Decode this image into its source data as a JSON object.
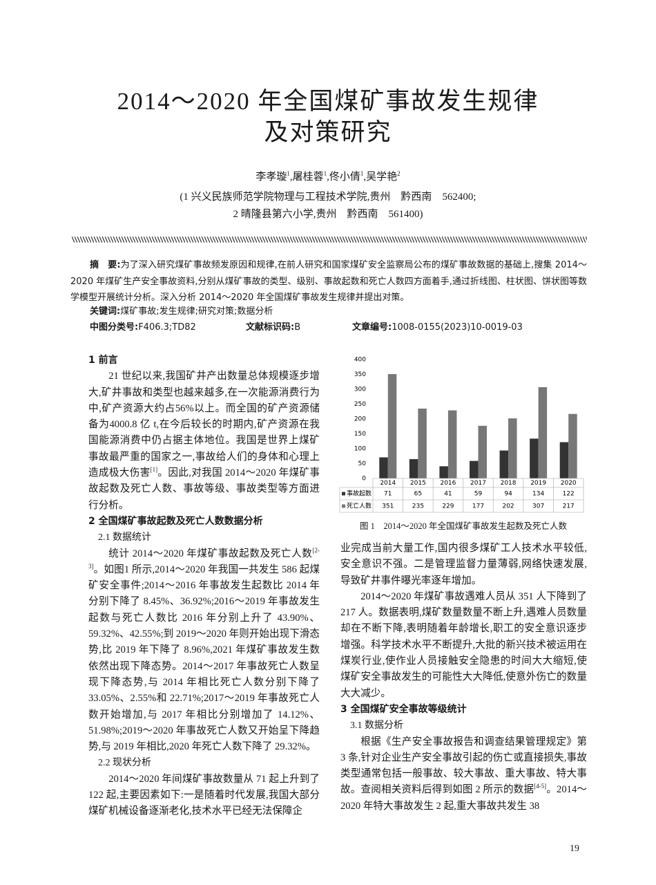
{
  "header": {
    "title_lines": [
      "2014～2020 年全国煤矿事故发生规律",
      "及对策研究"
    ],
    "authors": [
      "李孝璇",
      {
        "sup": "1"
      },
      ",屠桂蓉",
      {
        "sup": "1"
      },
      ",佟小倩",
      {
        "sup": "1"
      },
      ",吴学艳",
      {
        "sup": "2"
      }
    ],
    "affiliations": [
      "(1 兴义民族师范学院物理与工程技术学院,贵州　黔西南　562400;",
      "2 晴隆县第六小学,贵州　黔西南　561400)"
    ]
  },
  "abstract": {
    "label": "摘　要:",
    "text": "为了深入研究煤矿事故频发原因和规律,在前人研究和国家煤矿安全监察局公布的煤矿事故数据的基础上,搜集 2014～2020 年煤矿生产安全事故资料,分别从煤矿事故的类型、级别、事故起数和死亡人数四方面着手,通过折线图、柱状图、饼状图等数学模型开展统计分析。深入分析 2014～2020 年全国煤矿事故发生规律并提出对策。"
  },
  "keywords": {
    "label": "关键词:",
    "text": "煤矿事故;发生规律;研究对策;数据分析"
  },
  "classification": [
    {
      "label": "中图分类号:",
      "text": "F406.3;TD82"
    },
    {
      "label": "文献标识码:",
      "text": "B"
    },
    {
      "label": "文章编号:",
      "text": "1008-0155(2023)10-0019-03"
    }
  ],
  "left_column": [
    {
      "heading": [
        "1 前言"
      ]
    },
    {
      "paragraph": [
        "21 世纪以来,我国矿井产出数量总体规模逐步增大,矿井事故和类型也越来越多,在一次能源消费行为中,矿产资源大约占56%以上。而全国的矿产资源储备为4000.8 亿 t,在今后较长的时期内,矿产资源在我国能源消费中仍占据主体地位。我国是世界上煤矿事故最严重的国家之一,事故给人们的身体和心理上造成极大伤害",
        {
          "sup": "[1]"
        },
        "。因此,对我国 2014～2020 年煤矿事故起数及死亡人数、事故等级、事故类型等方面进行分析。"
      ]
    },
    {
      "heading": [
        "2 全国煤矿事故起数及死亡人数数据分析"
      ]
    },
    {
      "subheading": [
        "2.1 数据统计"
      ]
    },
    {
      "paragraph": [
        "统计 2014～2020 年煤矿事故起数及死亡人数",
        {
          "sup": "[2-3]"
        },
        "。如图1 所示,2014～2020 年我国一共发生 586 起煤矿安全事件;2014～2016 年事故发生起数比 2014 年分别下降了 8.45%、36.92%;2016～2019 年事故发生起数与死亡人数比 2016 年分别上升了 43.90%、59.32%、42.55%;到 2019～2020 年则开始出现下滑态势,比 2019 年下降了 8.96%,2021 年煤矿事故发生数依然出现下降态势。2014～2017 年事故死亡人数呈现下降态势,与 2014 年相比死亡人数分别下降了 33.05%、2.55%和 22.71%;2017～2019 年事故死亡人数开始增加,与 2017 年相比分别增加了 14.12%、51.98%;2019～2020 年事故死亡人数又开始呈下降趋势,与 2019 年相比,2020 年死亡人数下降了 29.32%。"
      ]
    },
    {
      "subheading": [
        "2.2 现状分析"
      ]
    },
    {
      "paragraph": [
        "2014～2020 年间煤矿事故数量从 71 起上升到了 122 起,主要因素如下:一是随着时代发展,我国大部分煤矿机械设备逐渐老化,技术水平已经无法保障企"
      ]
    }
  ],
  "right_column": [
    {
      "continuation": [
        "业完成当前大量工作,国内很多煤矿工人技术水平较低,安全意识不强。二是管理监督力量薄弱,网络快速发展,导致矿井事件曝光率逐年增加。"
      ]
    },
    {
      "paragraph": [
        "2014～2020 年煤矿事故遇难人员从 351 人下降到了 217 人。数据表明,煤矿数量数量不断上升,遇难人员数量却在不断下降,表明随着年龄增长,职工的安全意识逐步增强。科学技术水平不断提升,大批的新兴技术被运用在煤炭行业,使作业人员接触安全隐患的时间大大缩短,使煤矿安全事故发生的可能性大大降低,使意外伤亡的数量大大减少。"
      ]
    },
    {
      "heading": [
        "3 全国煤矿安全事故等级统计"
      ]
    },
    {
      "subheading": [
        "3.1 数据分析"
      ]
    },
    {
      "paragraph": [
        "根据《生产安全事故报告和调查结果管理规定》第 3 条,针对企业生产安全事故引起的伤亡或直接损失,事故类型通常包括一般事故、较大事故、重大事故、特大事故。查阅相关资料后得到如图 2 所示的数据",
        {
          "sup": "[4-5]"
        },
        "。2014～2020 年特大事故发生 2 起,重大事故共发生 38"
      ]
    }
  ],
  "chart_data": {
    "type": "bar",
    "caption": "图 1　2014～2020 年全国煤矿事故发生起数及死亡人数",
    "categories": [
      "2014",
      "2015",
      "2016",
      "2017",
      "2018",
      "2019",
      "2020"
    ],
    "series": [
      {
        "name": "事故起数",
        "color": "#333333",
        "values": [
          71,
          65,
          41,
          59,
          94,
          134,
          122
        ]
      },
      {
        "name": "死亡人数",
        "color": "#777777",
        "values": [
          351,
          235,
          229,
          177,
          202,
          307,
          217
        ]
      }
    ],
    "ylim": [
      0,
      400
    ],
    "yticks": [
      0,
      50,
      100,
      150,
      200,
      250,
      300,
      350,
      400
    ]
  },
  "page_number": "19"
}
